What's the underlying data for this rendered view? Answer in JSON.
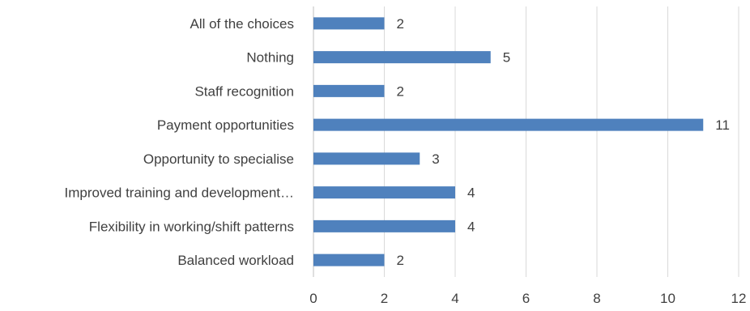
{
  "chart_data": {
    "type": "bar",
    "orientation": "horizontal",
    "categories": [
      "All of the choices",
      "Nothing",
      "Staff recognition",
      "Payment opportunities",
      "Opportunity to specialise",
      "Improved training and development…",
      "Flexibility in working/shift patterns",
      "Balanced workload"
    ],
    "values": [
      2,
      5,
      2,
      11,
      3,
      4,
      4,
      2
    ],
    "xlim": [
      0,
      12
    ],
    "xticks": [
      0,
      2,
      4,
      6,
      8,
      10,
      12
    ],
    "grid": true,
    "legend": "none",
    "bar_color": "#4f81bd",
    "title": "",
    "xlabel": "",
    "ylabel": ""
  }
}
